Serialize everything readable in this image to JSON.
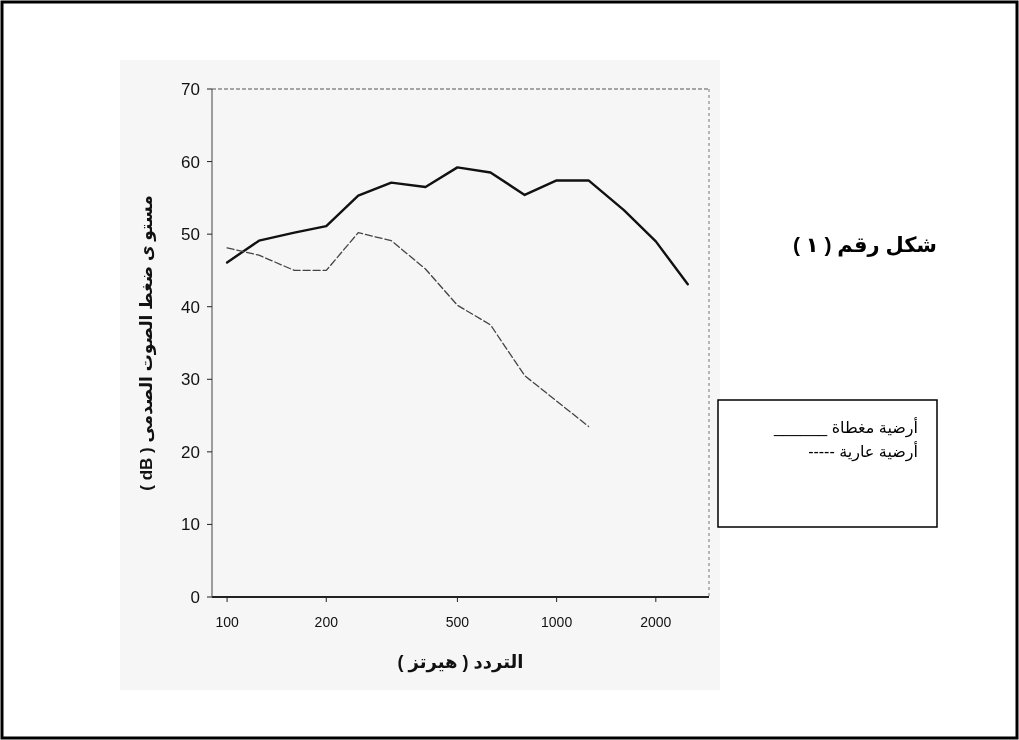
{
  "chart_data": {
    "type": "line",
    "title": "شكل رقم ( ١ )",
    "xlabel": "التردد ( هيرتز )",
    "ylabel": "مستو ى ضغط الصوت الصدمى ( dB )",
    "x": [
      100,
      125,
      160,
      200,
      250,
      315,
      400,
      500,
      630,
      800,
      1000,
      1250,
      1600,
      2000,
      2500
    ],
    "series": [
      {
        "name": "أرضية مغطاة ______",
        "color": "#111111",
        "line_style": "solid",
        "values": [
          46.1,
          49.1,
          50.2,
          51.1,
          55.3,
          57.1,
          56.5,
          59.2,
          58.5,
          55.4,
          57.4,
          57.4,
          53.3,
          49.0,
          43.1
        ]
      },
      {
        "name": "أرضية عارية -----",
        "color": "#444444",
        "line_style": "dashed",
        "values": [
          48.1,
          47.1,
          45.0,
          45.0,
          50.2,
          49.1,
          45.2,
          40.2,
          37.5,
          30.5,
          27.0,
          23.5,
          null,
          null,
          null
        ]
      }
    ],
    "log": "x",
    "xlim": [
      90,
      2900
    ],
    "xticks": [
      100,
      200,
      500,
      1000,
      2000
    ],
    "ylim": [
      0,
      70
    ],
    "yticks": [
      0,
      10,
      20,
      30,
      40,
      50,
      60,
      70
    ],
    "grid": false,
    "legend": "right"
  }
}
